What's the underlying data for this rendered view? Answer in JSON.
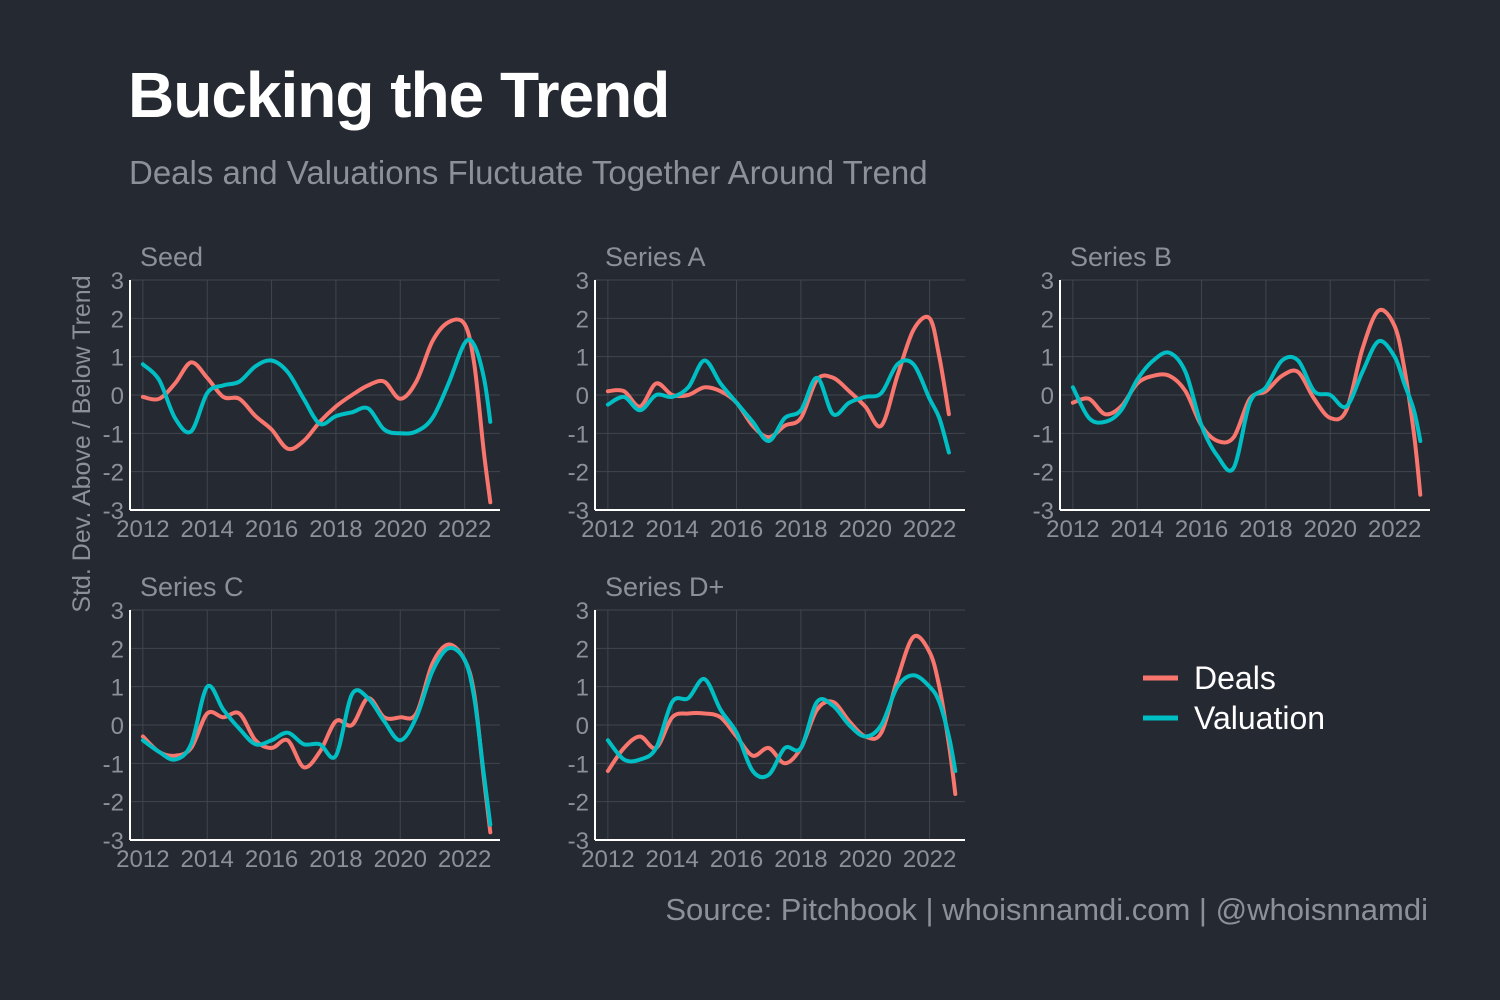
{
  "title": "Bucking the Trend",
  "subtitle": "Deals and Valuations Fluctuate Together Around Trend",
  "caption": "Source: Pitchbook | whoisnnamdi.com | @whoisnnamdi",
  "colors": {
    "background": "#252932",
    "deals": "#f8766d",
    "valuation": "#00bfc4",
    "grid": "#41454e",
    "axis": "#ffffff",
    "label": "#8c9098"
  },
  "chart_data": {
    "type": "line",
    "ylabel": "Std. Dev. Above / Below Trend",
    "ylim": [
      -3,
      3
    ],
    "xlim": [
      2011.6,
      2023.1
    ],
    "x_ticks": [
      "2012",
      "2014",
      "2016",
      "2018",
      "2020",
      "2022"
    ],
    "y_ticks": [
      "-3",
      "-2",
      "-1",
      "0",
      "1",
      "2",
      "3"
    ],
    "grid": true,
    "legend": {
      "placement": "right",
      "entries": [
        "Deals",
        "Valuation"
      ]
    },
    "panels": [
      {
        "name": "Seed",
        "series": [
          {
            "name": "Deals",
            "x": [
              2012,
              2012.5,
              2013,
              2013.5,
              2014,
              2014.5,
              2015,
              2015.5,
              2016,
              2016.5,
              2017,
              2017.5,
              2018,
              2018.5,
              2019,
              2019.5,
              2020,
              2020.5,
              2021,
              2021.5,
              2022,
              2022.3,
              2022.6,
              2022.8
            ],
            "y": [
              -0.05,
              -0.1,
              0.3,
              0.85,
              0.45,
              -0.05,
              -0.1,
              -0.55,
              -0.9,
              -1.4,
              -1.2,
              -0.7,
              -0.3,
              0.0,
              0.25,
              0.35,
              -0.1,
              0.35,
              1.4,
              1.9,
              1.85,
              0.8,
              -1.5,
              -2.8
            ]
          },
          {
            "name": "Valuation",
            "x": [
              2012,
              2012.5,
              2013,
              2013.5,
              2014,
              2014.5,
              2015,
              2015.5,
              2016,
              2016.5,
              2017,
              2017.5,
              2018,
              2018.5,
              2019,
              2019.5,
              2020,
              2020.5,
              2021,
              2021.5,
              2022,
              2022.3,
              2022.6,
              2022.8
            ],
            "y": [
              0.8,
              0.4,
              -0.6,
              -0.95,
              0.05,
              0.25,
              0.35,
              0.75,
              0.9,
              0.6,
              -0.1,
              -0.75,
              -0.55,
              -0.45,
              -0.35,
              -0.9,
              -1.0,
              -0.95,
              -0.6,
              0.3,
              1.35,
              1.3,
              0.45,
              -0.7
            ]
          }
        ]
      },
      {
        "name": "Series A",
        "series": [
          {
            "name": "Deals",
            "x": [
              2012,
              2012.5,
              2013,
              2013.5,
              2014,
              2014.5,
              2015,
              2015.5,
              2016,
              2016.5,
              2017,
              2017.5,
              2018,
              2018.5,
              2019,
              2019.5,
              2020,
              2020.5,
              2021,
              2021.5,
              2022,
              2022.3,
              2022.6
            ],
            "y": [
              0.1,
              0.1,
              -0.3,
              0.3,
              0.0,
              0.0,
              0.2,
              0.1,
              -0.2,
              -0.8,
              -1.1,
              -0.8,
              -0.6,
              0.4,
              0.45,
              0.1,
              -0.3,
              -0.8,
              0.5,
              1.7,
              2.0,
              1.0,
              -0.5
            ]
          },
          {
            "name": "Valuation",
            "x": [
              2012,
              2012.5,
              2013,
              2013.5,
              2014,
              2014.5,
              2015,
              2015.5,
              2016,
              2016.5,
              2017,
              2017.5,
              2018,
              2018.5,
              2019,
              2019.5,
              2020,
              2020.5,
              2021,
              2021.5,
              2022,
              2022.3,
              2022.6
            ],
            "y": [
              -0.25,
              -0.05,
              -0.4,
              0.0,
              -0.05,
              0.2,
              0.9,
              0.3,
              -0.2,
              -0.7,
              -1.2,
              -0.6,
              -0.4,
              0.45,
              -0.5,
              -0.2,
              -0.05,
              0.05,
              0.8,
              0.8,
              -0.1,
              -0.6,
              -1.5
            ]
          }
        ]
      },
      {
        "name": "Series B",
        "series": [
          {
            "name": "Deals",
            "x": [
              2012,
              2012.5,
              2013,
              2013.5,
              2014,
              2014.5,
              2015,
              2015.5,
              2016,
              2016.5,
              2017,
              2017.5,
              2018,
              2018.5,
              2019,
              2019.5,
              2020,
              2020.5,
              2021,
              2021.5,
              2022,
              2022.3,
              2022.6,
              2022.8
            ],
            "y": [
              -0.2,
              -0.1,
              -0.5,
              -0.3,
              0.3,
              0.5,
              0.5,
              0.1,
              -0.8,
              -1.2,
              -1.1,
              -0.1,
              0.1,
              0.5,
              0.6,
              -0.1,
              -0.6,
              -0.4,
              1.2,
              2.2,
              1.8,
              0.7,
              -1.0,
              -2.6
            ]
          },
          {
            "name": "Valuation",
            "x": [
              2012,
              2012.5,
              2013,
              2013.5,
              2014,
              2014.5,
              2015,
              2015.5,
              2016,
              2016.5,
              2017,
              2017.5,
              2018,
              2018.5,
              2019,
              2019.5,
              2020,
              2020.5,
              2021,
              2021.5,
              2022,
              2022.3,
              2022.6,
              2022.8
            ],
            "y": [
              0.2,
              -0.6,
              -0.7,
              -0.4,
              0.4,
              0.9,
              1.1,
              0.6,
              -0.8,
              -1.6,
              -1.9,
              -0.2,
              0.2,
              0.9,
              0.9,
              0.1,
              0.0,
              -0.3,
              0.6,
              1.4,
              1.0,
              0.3,
              -0.4,
              -1.2
            ]
          }
        ]
      },
      {
        "name": "Series C",
        "series": [
          {
            "name": "Deals",
            "x": [
              2012,
              2012.5,
              2013,
              2013.5,
              2014,
              2014.5,
              2015,
              2015.5,
              2016,
              2016.5,
              2017,
              2017.5,
              2018,
              2018.5,
              2019,
              2019.5,
              2020,
              2020.5,
              2021,
              2021.5,
              2022,
              2022.3,
              2022.6,
              2022.8
            ],
            "y": [
              -0.3,
              -0.7,
              -0.8,
              -0.6,
              0.3,
              0.2,
              0.3,
              -0.4,
              -0.6,
              -0.4,
              -1.1,
              -0.7,
              0.1,
              0.0,
              0.7,
              0.2,
              0.2,
              0.3,
              1.6,
              2.1,
              1.7,
              0.8,
              -1.4,
              -2.8
            ]
          },
          {
            "name": "Valuation",
            "x": [
              2012,
              2012.5,
              2013,
              2013.5,
              2014,
              2014.5,
              2015,
              2015.5,
              2016,
              2016.5,
              2017,
              2017.5,
              2018,
              2018.5,
              2019,
              2019.5,
              2020,
              2020.5,
              2021,
              2021.5,
              2022,
              2022.3,
              2022.6,
              2022.8
            ],
            "y": [
              -0.4,
              -0.7,
              -0.9,
              -0.5,
              1.0,
              0.4,
              -0.1,
              -0.5,
              -0.4,
              -0.2,
              -0.5,
              -0.5,
              -0.8,
              0.8,
              0.7,
              0.1,
              -0.4,
              0.2,
              1.4,
              2.0,
              1.7,
              0.7,
              -1.3,
              -2.6
            ]
          }
        ]
      },
      {
        "name": "Series D+",
        "series": [
          {
            "name": "Deals",
            "x": [
              2012,
              2012.5,
              2013,
              2013.5,
              2014,
              2014.5,
              2015,
              2015.5,
              2016,
              2016.5,
              2017,
              2017.5,
              2018,
              2018.5,
              2019,
              2019.5,
              2020,
              2020.5,
              2021,
              2021.5,
              2022,
              2022.3,
              2022.6,
              2022.8
            ],
            "y": [
              -1.2,
              -0.6,
              -0.3,
              -0.6,
              0.2,
              0.3,
              0.3,
              0.2,
              -0.3,
              -0.8,
              -0.6,
              -1.0,
              -0.6,
              0.4,
              0.6,
              0.1,
              -0.3,
              -0.2,
              1.2,
              2.3,
              1.9,
              1.0,
              -0.5,
              -1.8
            ]
          },
          {
            "name": "Valuation",
            "x": [
              2012,
              2012.5,
              2013,
              2013.5,
              2014,
              2014.5,
              2015,
              2015.5,
              2016,
              2016.5,
              2017,
              2017.5,
              2018,
              2018.5,
              2019,
              2019.5,
              2020,
              2020.5,
              2021,
              2021.5,
              2022,
              2022.3,
              2022.6,
              2022.8
            ],
            "y": [
              -0.4,
              -0.9,
              -0.9,
              -0.6,
              0.6,
              0.7,
              1.2,
              0.4,
              -0.2,
              -1.2,
              -1.3,
              -0.6,
              -0.6,
              0.6,
              0.5,
              0.0,
              -0.3,
              0.0,
              1.0,
              1.3,
              1.0,
              0.6,
              -0.3,
              -1.2
            ]
          }
        ]
      }
    ]
  }
}
